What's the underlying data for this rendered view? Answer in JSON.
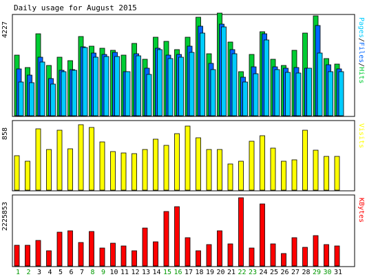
{
  "title": "Daily usage for August 2015",
  "colors": {
    "background": "#ffffff",
    "panel_border": "#000000",
    "hits": "#00cc33",
    "files": "#0066ff",
    "pages": "#00ccff",
    "visits": "#ffff00",
    "kbytes": "#ff0000",
    "weekday_label": "#000000",
    "weekend_label": "#009900"
  },
  "chart_data": [
    {
      "type": "bar",
      "panel": "hits-files-pages",
      "y_label": "4227",
      "side_label_parts": [
        {
          "text": "Pages",
          "color": "#00ccff"
        },
        {
          "text": "/",
          "color": "#000000"
        },
        {
          "text": "Files",
          "color": "#0066ff"
        },
        {
          "text": "/",
          "color": "#000000"
        },
        {
          "text": "Hits",
          "color": "#00cc33"
        }
      ],
      "ylim": [
        0,
        4227
      ],
      "categories": [
        "1",
        "2",
        "3",
        "4",
        "5",
        "6",
        "7",
        "8",
        "9",
        "10",
        "11",
        "12",
        "13",
        "14",
        "15",
        "16",
        "17",
        "18",
        "19",
        "20",
        "21",
        "22",
        "23",
        "24",
        "25",
        "26",
        "27",
        "28",
        "29",
        "30",
        "31"
      ],
      "series": [
        {
          "name": "Hits",
          "color": "#00cc33",
          "values": [
            2560,
            2030,
            3480,
            2120,
            2470,
            2330,
            3350,
            2950,
            2870,
            2780,
            2570,
            3060,
            2390,
            3310,
            3160,
            2810,
            3320,
            4180,
            2610,
            4330,
            3120,
            1880,
            2600,
            3560,
            2400,
            2120,
            2760,
            3500,
            4230,
            2410,
            2180
          ]
        },
        {
          "name": "Files",
          "color": "#0066ff",
          "values": [
            1980,
            1730,
            2470,
            1580,
            1920,
            1950,
            2920,
            2640,
            2590,
            2670,
            1880,
            2620,
            2020,
            2870,
            2560,
            2600,
            2930,
            3780,
            2230,
            3870,
            2810,
            1640,
            2080,
            3460,
            2070,
            2020,
            2040,
            2020,
            3810,
            2150,
            1970
          ]
        },
        {
          "name": "Pages",
          "color": "#00ccff",
          "values": [
            1440,
            1410,
            2280,
            1340,
            1880,
            1920,
            2890,
            2480,
            2500,
            2520,
            1870,
            2530,
            1750,
            2790,
            2430,
            2480,
            2680,
            3490,
            1950,
            3760,
            2630,
            1440,
            1790,
            3200,
            1960,
            1830,
            1820,
            2010,
            2640,
            1870,
            1870
          ]
        }
      ]
    },
    {
      "type": "bar",
      "panel": "visits",
      "y_label": "858",
      "side_label_parts": [
        {
          "text": "Visits",
          "color": "#ffff00"
        }
      ],
      "ylim": [
        0,
        858
      ],
      "categories": [
        "1",
        "2",
        "3",
        "4",
        "5",
        "6",
        "7",
        "8",
        "9",
        "10",
        "11",
        "12",
        "13",
        "14",
        "15",
        "16",
        "17",
        "18",
        "19",
        "20",
        "21",
        "22",
        "23",
        "24",
        "25",
        "26",
        "27",
        "28",
        "29",
        "30",
        "31"
      ],
      "series": [
        {
          "name": "Visits",
          "color": "#ffff00",
          "values": [
            460,
            380,
            810,
            540,
            790,
            550,
            870,
            830,
            640,
            510,
            490,
            480,
            540,
            680,
            590,
            750,
            850,
            690,
            540,
            540,
            350,
            380,
            650,
            720,
            560,
            380,
            400,
            790,
            530,
            450,
            450
          ]
        }
      ]
    },
    {
      "type": "bar",
      "panel": "kbytes",
      "y_label": "2225853",
      "side_label_parts": [
        {
          "text": "KBytes",
          "color": "#ff0000"
        }
      ],
      "ylim": [
        0,
        2225853
      ],
      "categories": [
        "1",
        "2",
        "3",
        "4",
        "5",
        "6",
        "7",
        "8",
        "9",
        "10",
        "11",
        "12",
        "13",
        "14",
        "15",
        "16",
        "17",
        "18",
        "19",
        "20",
        "21",
        "22",
        "23",
        "24",
        "25",
        "26",
        "27",
        "28",
        "29",
        "30",
        "31"
      ],
      "series": [
        {
          "name": "KBytes",
          "color": "#ff0000",
          "values": [
            680000,
            680000,
            830000,
            490000,
            1120000,
            1150000,
            770000,
            1140000,
            580000,
            750000,
            650000,
            500000,
            1250000,
            790000,
            1800000,
            1950000,
            920000,
            490000,
            700000,
            1160000,
            720000,
            2240000,
            580000,
            2050000,
            730000,
            420000,
            940000,
            620000,
            990000,
            700000,
            660000
          ]
        }
      ]
    }
  ],
  "x_axis": {
    "days": [
      {
        "label": "1",
        "weekend": true
      },
      {
        "label": "2",
        "weekend": true
      },
      {
        "label": "3",
        "weekend": false
      },
      {
        "label": "4",
        "weekend": false
      },
      {
        "label": "5",
        "weekend": false
      },
      {
        "label": "6",
        "weekend": false
      },
      {
        "label": "7",
        "weekend": false
      },
      {
        "label": "8",
        "weekend": true
      },
      {
        "label": "9",
        "weekend": true
      },
      {
        "label": "10",
        "weekend": false
      },
      {
        "label": "11",
        "weekend": false
      },
      {
        "label": "12",
        "weekend": false
      },
      {
        "label": "13",
        "weekend": false
      },
      {
        "label": "14",
        "weekend": false
      },
      {
        "label": "15",
        "weekend": true
      },
      {
        "label": "16",
        "weekend": true
      },
      {
        "label": "17",
        "weekend": false
      },
      {
        "label": "18",
        "weekend": false
      },
      {
        "label": "19",
        "weekend": false
      },
      {
        "label": "20",
        "weekend": false
      },
      {
        "label": "21",
        "weekend": false
      },
      {
        "label": "22",
        "weekend": true
      },
      {
        "label": "23",
        "weekend": true
      },
      {
        "label": "24",
        "weekend": false
      },
      {
        "label": "25",
        "weekend": false
      },
      {
        "label": "26",
        "weekend": false
      },
      {
        "label": "27",
        "weekend": false
      },
      {
        "label": "28",
        "weekend": false
      },
      {
        "label": "29",
        "weekend": true
      },
      {
        "label": "30",
        "weekend": true
      },
      {
        "label": "31",
        "weekend": false
      }
    ]
  }
}
